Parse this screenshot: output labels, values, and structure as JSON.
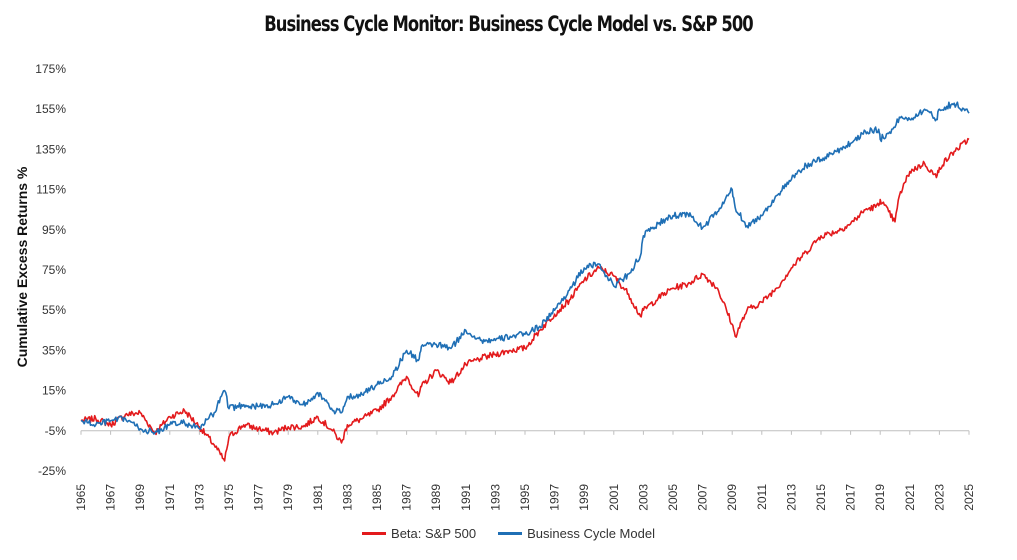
{
  "chart_data": {
    "type": "line",
    "title": "Business Cycle Monitor: Business Cycle Model vs. S&P 500",
    "ylabel": "Cumulative Excess Returns %",
    "xlabel": "",
    "xlim": [
      1965,
      2025
    ],
    "ylim": [
      -25,
      175
    ],
    "y_ticks": [
      "175%",
      "155%",
      "135%",
      "115%",
      "95%",
      "75%",
      "55%",
      "35%",
      "15%",
      "-5%",
      "-25%"
    ],
    "x_ticks": [
      "1965",
      "1967",
      "1969",
      "1971",
      "1973",
      "1975",
      "1977",
      "1979",
      "1981",
      "1983",
      "1985",
      "1987",
      "1989",
      "1991",
      "1993",
      "1995",
      "1997",
      "1999",
      "2001",
      "2003",
      "2005",
      "2007",
      "2009",
      "2011",
      "2013",
      "2015",
      "2017",
      "2019",
      "2021",
      "2023",
      "2025"
    ],
    "grid": false,
    "legend_position": "bottom",
    "series": [
      {
        "name": "Beta: S&P 500",
        "color": "#e31a1c",
        "x": [
          1965,
          1966,
          1967,
          1968,
          1969,
          1970,
          1971,
          1972,
          1973,
          1974,
          1974.7,
          1975,
          1976,
          1977,
          1978,
          1979,
          1980,
          1981,
          1982,
          1982.6,
          1983,
          1984,
          1985,
          1986,
          1987,
          1987.8,
          1988,
          1989,
          1990,
          1991,
          1992,
          1993,
          1994,
          1995,
          1996,
          1997,
          1998,
          1999,
          2000,
          2001,
          2002,
          2002.8,
          2003,
          2004,
          2005,
          2006,
          2007,
          2008,
          2009,
          2009.2,
          2010,
          2011,
          2012,
          2013,
          2014,
          2015,
          2016,
          2017,
          2018,
          2018.9,
          2019,
          2020,
          2020.3,
          2021,
          2022,
          2022.8,
          2023,
          2024,
          2025
        ],
        "y": [
          0,
          1,
          -2,
          3,
          4,
          -6,
          2,
          5,
          -3,
          -12,
          -20,
          -8,
          -2,
          -4,
          -6,
          -3,
          -3,
          2,
          -5,
          -11,
          -2,
          1,
          5,
          12,
          22,
          12,
          17,
          25,
          19,
          28,
          31,
          33,
          35,
          36,
          45,
          53,
          60,
          70,
          76,
          72,
          63,
          52,
          55,
          61,
          66,
          68,
          73,
          66,
          48,
          42,
          55,
          59,
          66,
          76,
          84,
          92,
          94,
          98,
          105,
          107,
          110,
          99,
          112,
          124,
          128,
          121,
          126,
          134,
          140
        ]
      },
      {
        "name": "Business Cycle Model",
        "color": "#1f6fb5",
        "x": [
          1965,
          1966,
          1967,
          1968,
          1969,
          1970,
          1971,
          1972,
          1973,
          1974,
          1974.7,
          1975,
          1976,
          1977,
          1978,
          1979,
          1980,
          1981,
          1982,
          1982.6,
          1983,
          1984,
          1985,
          1986,
          1987,
          1987.8,
          1988,
          1989,
          1990,
          1991,
          1992,
          1993,
          1994,
          1995,
          1996,
          1997,
          1998,
          1999,
          2000,
          2001,
          2002,
          2002.8,
          2003,
          2004,
          2005,
          2006,
          2007,
          2008,
          2009,
          2009.2,
          2010,
          2011,
          2012,
          2013,
          2014,
          2015,
          2016,
          2017,
          2018,
          2018.9,
          2019,
          2020,
          2020.3,
          2021,
          2022,
          2022.8,
          2023,
          2024,
          2025
        ],
        "y": [
          0,
          -2,
          0,
          1,
          -4,
          -6,
          -2,
          -1,
          -4,
          4,
          15,
          6,
          8,
          7,
          8,
          12,
          8,
          14,
          5,
          4,
          12,
          13,
          18,
          22,
          35,
          30,
          37,
          38,
          36,
          45,
          40,
          40,
          42,
          43,
          47,
          55,
          65,
          76,
          78,
          67,
          73,
          82,
          92,
          98,
          102,
          103,
          96,
          104,
          115,
          106,
          97,
          102,
          112,
          120,
          127,
          130,
          134,
          138,
          144,
          145,
          140,
          146,
          151,
          150,
          155,
          150,
          155,
          158,
          153
        ]
      }
    ]
  }
}
